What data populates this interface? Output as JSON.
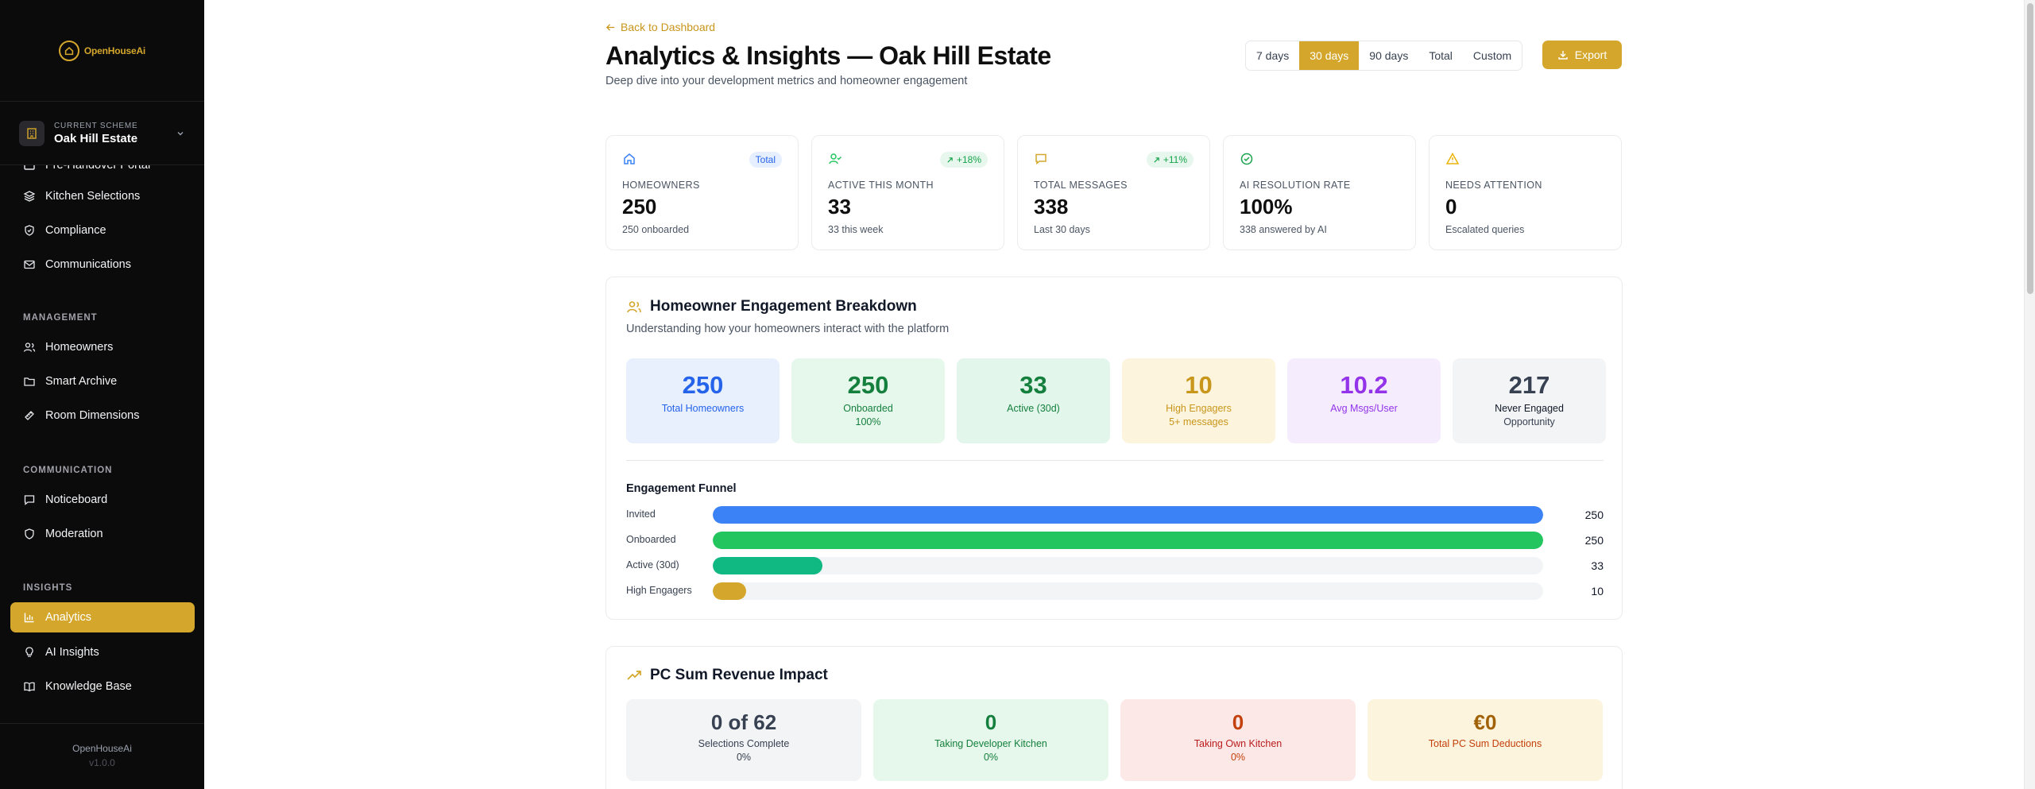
{
  "app": {
    "name": "OpenHouseAi",
    "version": "v1.0.0"
  },
  "scheme": {
    "label": "CURRENT SCHEME",
    "name": "Oak Hill Estate"
  },
  "sidebar": {
    "partial_item": "Pre-Handover Portal",
    "items_top": [
      {
        "label": "Kitchen Selections",
        "icon": "layers-icon"
      },
      {
        "label": "Compliance",
        "icon": "shield-check-icon"
      },
      {
        "label": "Communications",
        "icon": "mail-icon"
      }
    ],
    "sections": [
      {
        "title": "MANAGEMENT",
        "items": [
          {
            "label": "Homeowners",
            "icon": "users-icon"
          },
          {
            "label": "Smart Archive",
            "icon": "folder-icon"
          },
          {
            "label": "Room Dimensions",
            "icon": "ruler-icon"
          }
        ]
      },
      {
        "title": "COMMUNICATION",
        "items": [
          {
            "label": "Noticeboard",
            "icon": "message-square-icon"
          },
          {
            "label": "Moderation",
            "icon": "shield-icon"
          }
        ]
      },
      {
        "title": "INSIGHTS",
        "items": [
          {
            "label": "Analytics",
            "icon": "bar-chart-icon",
            "active": true
          },
          {
            "label": "AI Insights",
            "icon": "lightbulb-icon"
          },
          {
            "label": "Knowledge Base",
            "icon": "book-icon"
          }
        ]
      }
    ]
  },
  "header": {
    "back_label": "Back to Dashboard",
    "title": "Analytics & Insights — Oak Hill Estate",
    "subtitle": "Deep dive into your development metrics and homeowner engagement",
    "ranges": [
      "7 days",
      "30 days",
      "90 days",
      "Total",
      "Custom"
    ],
    "selected_range": "30 days",
    "export_label": "Export"
  },
  "stats": [
    {
      "icon": "home-icon",
      "badge": "Total",
      "badge_style": "blue",
      "label": "HOMEOWNERS",
      "value": "250",
      "sub": "250 onboarded",
      "color": "#3b82f6"
    },
    {
      "icon": "user-check-icon",
      "badge": "+18%",
      "badge_style": "green",
      "label": "ACTIVE THIS MONTH",
      "value": "33",
      "sub": "33 this week",
      "color": "#22c55e"
    },
    {
      "icon": "message-icon",
      "badge": "+11%",
      "badge_style": "green",
      "label": "TOTAL MESSAGES",
      "value": "338",
      "sub": "Last 30 days",
      "color": "#d4a72c"
    },
    {
      "icon": "check-circle-icon",
      "badge": "",
      "badge_style": "",
      "label": "AI RESOLUTION RATE",
      "value": "100%",
      "sub": "338 answered by AI",
      "color": "#16a34a"
    },
    {
      "icon": "alert-triangle-icon",
      "badge": "",
      "badge_style": "",
      "label": "NEEDS ATTENTION",
      "value": "0",
      "sub": "Escalated queries",
      "color": "#eab308"
    }
  ],
  "engagement": {
    "title": "Homeowner Engagement Breakdown",
    "subtitle": "Understanding how your homeowners interact with the platform",
    "metrics": [
      {
        "value": "250",
        "label": "Total Homeowners",
        "sub": "",
        "bg": "#e8f0fe",
        "fg": "#2563eb",
        "lc": "#2563eb"
      },
      {
        "value": "250",
        "label": "Onboarded",
        "sub": "100%",
        "bg": "#e6f7ec",
        "fg": "#15803d",
        "lc": "#15803d"
      },
      {
        "value": "33",
        "label": "Active (30d)",
        "sub": "",
        "bg": "#e3f6ec",
        "fg": "#15803d",
        "lc": "#15803d"
      },
      {
        "value": "10",
        "label": "High Engagers",
        "sub": "5+ messages",
        "bg": "#fdf4de",
        "fg": "#c8961a",
        "lc": "#c8961a"
      },
      {
        "value": "10.2",
        "label": "Avg Msgs/User",
        "sub": "",
        "bg": "#f5edfd",
        "fg": "#9333ea",
        "lc": "#9333ea"
      },
      {
        "value": "217",
        "label": "Never Engaged",
        "sub": "Opportunity",
        "bg": "#f3f4f6",
        "fg": "#374151",
        "lc": "#111827"
      }
    ],
    "funnel_title": "Engagement Funnel",
    "funnel": [
      {
        "label": "Invited",
        "value": 250,
        "display": "250",
        "color": "#3b82f6"
      },
      {
        "label": "Onboarded",
        "value": 250,
        "display": "250",
        "color": "#22c55e"
      },
      {
        "label": "Active (30d)",
        "value": 33,
        "display": "33",
        "color": "#10b981"
      },
      {
        "label": "High Engagers",
        "value": 10,
        "display": "10",
        "color": "#d4a72c"
      }
    ],
    "funnel_max": 250
  },
  "pcsum": {
    "title": "PC Sum Revenue Impact",
    "boxes": [
      {
        "value": "0 of 62",
        "label": "Selections Complete",
        "sub": "0%",
        "bg": "#f3f4f6",
        "fg": "#374151",
        "lc": "#374151"
      },
      {
        "value": "0",
        "label": "Taking Developer Kitchen",
        "sub": "0%",
        "bg": "#e6f7ec",
        "fg": "#15803d",
        "lc": "#15803d"
      },
      {
        "value": "0",
        "label": "Taking Own Kitchen",
        "sub": "0%",
        "bg": "#fde8e8",
        "fg": "#c2410c",
        "lc": "#b91c1c"
      },
      {
        "value": "€0",
        "label": "Total PC Sum Deductions",
        "sub": "",
        "bg": "#fdf4de",
        "fg": "#a16207",
        "lc": "#c2410c"
      }
    ]
  }
}
